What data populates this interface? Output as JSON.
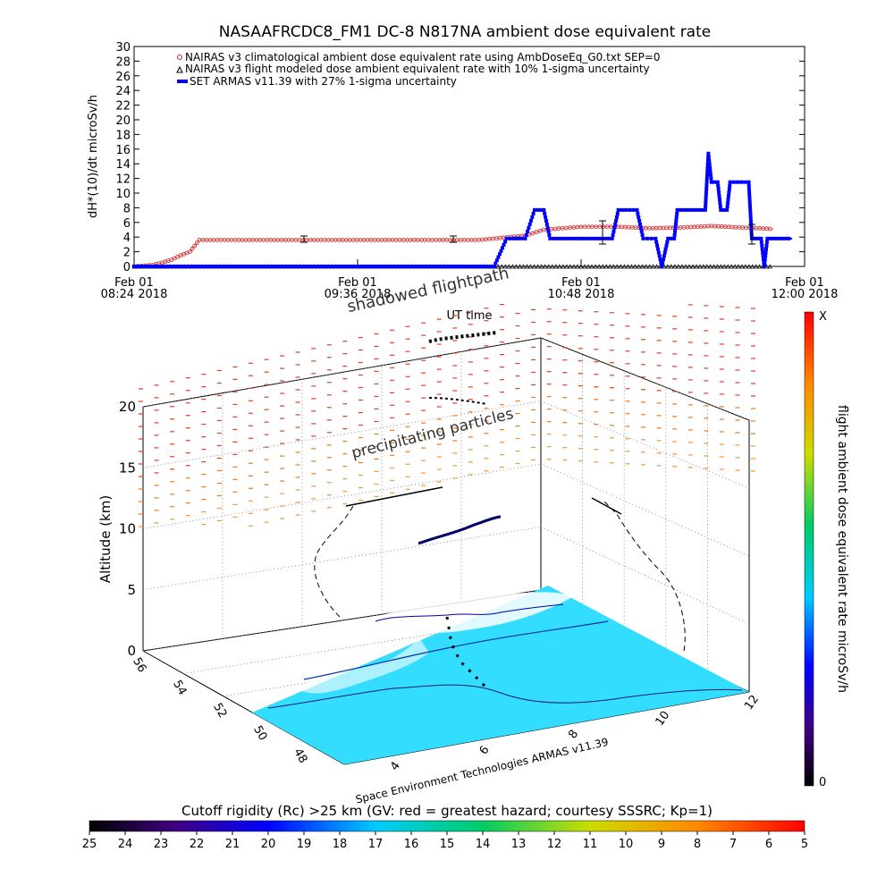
{
  "title": "NASAAFRCDC8_FM1 DC-8    N817NA ambient dose equivalent rate",
  "top_chart": {
    "ylabel": "dH*(10)/dt microSv/h",
    "xlabel": "UT time",
    "ylim": [
      0,
      30
    ],
    "y_ticks": [
      "0",
      "2",
      "4",
      "6",
      "8",
      "10",
      "12",
      "14",
      "16",
      "18",
      "20",
      "22",
      "24",
      "26",
      "28",
      "30"
    ],
    "x_ticks": [
      {
        "line1": "Feb 01",
        "line2": "08:24 2018"
      },
      {
        "line1": "Feb 01",
        "line2": "09:36 2018"
      },
      {
        "line1": "Feb 01",
        "line2": "10:48 2018"
      },
      {
        "line1": "Feb 01",
        "line2": "12:00 2018"
      }
    ],
    "legend": [
      "NAIRAS v3 climatological ambient dose equivalent rate using AmbDoseEq_G0.txt SEP=0",
      "NAIRAS v3 flight modeled dose ambient equivalent rate with 10% 1-sigma uncertainty",
      "SET ARMAS v11.39 with 27% 1-sigma uncertainty"
    ],
    "colors": {
      "climatological": "#cc2222",
      "modeled": "#000000",
      "armas": "#0000ff"
    }
  },
  "chart_data": {
    "type": "line",
    "x_unit": "UT time Feb 01 2018",
    "xlim": [
      "08:24",
      "12:00"
    ],
    "ylim": [
      0,
      30
    ],
    "series": [
      {
        "name": "NAIRAS v3 climatological ambient dose equivalent rate using AmbDoseEq_G0.txt SEP=0",
        "points": [
          [
            "08:24",
            0.0
          ],
          [
            "08:30",
            0.2
          ],
          [
            "08:33",
            0.5
          ],
          [
            "08:36",
            0.9
          ],
          [
            "08:39",
            1.5
          ],
          [
            "08:42",
            2.0
          ],
          [
            "08:45",
            3.6
          ],
          [
            "09:00",
            3.6
          ],
          [
            "09:15",
            3.6
          ],
          [
            "09:30",
            3.6
          ],
          [
            "09:45",
            3.6
          ],
          [
            "10:00",
            3.6
          ],
          [
            "10:15",
            3.6
          ],
          [
            "10:30",
            4.2
          ],
          [
            "10:36",
            5.0
          ],
          [
            "10:42",
            5.2
          ],
          [
            "10:48",
            5.4
          ],
          [
            "11:00",
            5.4
          ],
          [
            "11:10",
            5.2
          ],
          [
            "11:20",
            5.3
          ],
          [
            "11:30",
            5.5
          ],
          [
            "11:40",
            5.3
          ],
          [
            "11:50",
            5.1
          ]
        ]
      },
      {
        "name": "NAIRAS v3 flight modeled dose ambient equivalent rate with 10% 1-sigma uncertainty",
        "points": [
          [
            "08:24",
            0.0
          ],
          [
            "09:00",
            0.0
          ],
          [
            "09:36",
            0.0
          ],
          [
            "10:12",
            0.0
          ],
          [
            "10:48",
            0.0
          ],
          [
            "11:24",
            0.0
          ],
          [
            "11:50",
            0.0
          ]
        ]
      },
      {
        "name": "SET ARMAS v11.39 with 27% 1-sigma uncertainty",
        "points": [
          [
            "08:24",
            0
          ],
          [
            "10:20",
            0
          ],
          [
            "10:24",
            3.8
          ],
          [
            "10:30",
            3.8
          ],
          [
            "10:33",
            7.7
          ],
          [
            "10:36",
            7.7
          ],
          [
            "10:38",
            3.8
          ],
          [
            "10:58",
            3.8
          ],
          [
            "11:00",
            7.7
          ],
          [
            "11:06",
            7.7
          ],
          [
            "11:08",
            3.8
          ],
          [
            "11:12",
            3.8
          ],
          [
            "11:14",
            0
          ],
          [
            "11:16",
            3.8
          ],
          [
            "11:18",
            3.8
          ],
          [
            "11:19",
            7.7
          ],
          [
            "11:28",
            7.7
          ],
          [
            "11:29",
            15.4
          ],
          [
            "11:30",
            11.5
          ],
          [
            "11:32",
            11.5
          ],
          [
            "11:33",
            7.7
          ],
          [
            "11:35",
            7.7
          ],
          [
            "11:36",
            11.5
          ],
          [
            "11:42",
            11.5
          ],
          [
            "11:43",
            3.8
          ],
          [
            "11:46",
            3.8
          ],
          [
            "11:47",
            0
          ],
          [
            "11:48",
            3.8
          ],
          [
            "11:56",
            3.8
          ]
        ]
      }
    ]
  },
  "plot3d": {
    "annotations": [
      "shadowed flightpath",
      "precipitating particles"
    ],
    "zlabel": "Altitude (km)",
    "z_ticks": [
      "0",
      "5",
      "10",
      "15",
      "20"
    ],
    "lat_ticks": [
      "48",
      "50",
      "52",
      "54",
      "56"
    ],
    "lon_ticks": [
      "4",
      "6",
      "8",
      "10",
      "12"
    ],
    "credit": "Space Environment Technologies ARMAS v11.39"
  },
  "side_colorbar": {
    "label": "flight ambient dose equivalent rate microSv/h",
    "top": "X",
    "bottom": "0"
  },
  "bottom_colorbar": {
    "title": "Cutoff rigidity (Rc) >25 km (GV: red = greatest hazard; courtesy SSSRC; Kp=1)",
    "ticks": [
      "25",
      "24",
      "23",
      "22",
      "21",
      "20",
      "19",
      "18",
      "17",
      "16",
      "15",
      "14",
      "13",
      "12",
      "11",
      "10",
      "9",
      "8",
      "7",
      "6",
      "5"
    ]
  }
}
